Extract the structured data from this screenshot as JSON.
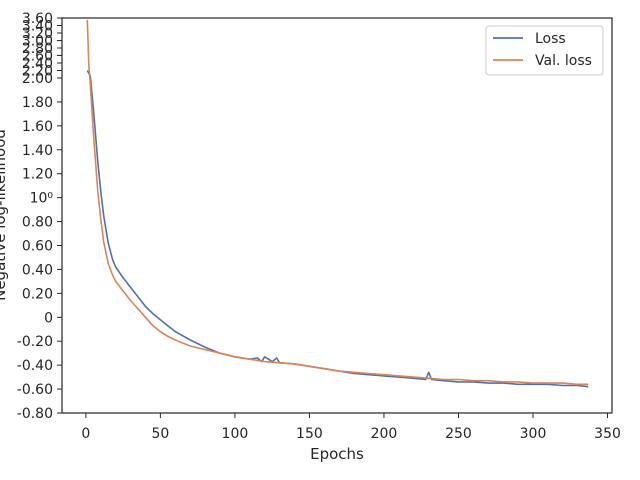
{
  "chart_data": {
    "type": "line",
    "xlabel": "Epochs",
    "ylabel": "Negative log-likelihood",
    "xlim": [
      -16,
      353
    ],
    "ylim": [
      -0.8,
      3.6
    ],
    "y_scale": "symlog-like (compressed above 2.00)",
    "grid": false,
    "legend_position": "top-right",
    "x_ticks": [
      {
        "value": 0,
        "label": "0"
      },
      {
        "value": 50,
        "label": "50"
      },
      {
        "value": 100,
        "label": "100"
      },
      {
        "value": 150,
        "label": "150"
      },
      {
        "value": 200,
        "label": "200"
      },
      {
        "value": 250,
        "label": "250"
      },
      {
        "value": 300,
        "label": "300"
      },
      {
        "value": 350,
        "label": "350"
      }
    ],
    "y_ticks": [
      {
        "value": -0.8,
        "label": "-0.80"
      },
      {
        "value": -0.6,
        "label": "-0.60"
      },
      {
        "value": -0.4,
        "label": "-0.40"
      },
      {
        "value": -0.2,
        "label": "-0.20"
      },
      {
        "value": 0.0,
        "label": "0"
      },
      {
        "value": 0.2,
        "label": "0.20"
      },
      {
        "value": 0.4,
        "label": "0.40"
      },
      {
        "value": 0.6,
        "label": "0.60"
      },
      {
        "value": 0.8,
        "label": "0.80"
      },
      {
        "value": 1.0,
        "label": "10⁰"
      },
      {
        "value": 1.2,
        "label": "1.20"
      },
      {
        "value": 1.4,
        "label": "1.40"
      },
      {
        "value": 1.6,
        "label": "1.60"
      },
      {
        "value": 1.8,
        "label": "1.80"
      },
      {
        "value": 2.0,
        "label": "2.00"
      },
      {
        "value": 2.2,
        "label": "2.20"
      },
      {
        "value": 2.4,
        "label": "2.40"
      },
      {
        "value": 2.6,
        "label": "2.60"
      },
      {
        "value": 2.8,
        "label": "2.80"
      },
      {
        "value": 3.0,
        "label": "3.00"
      },
      {
        "value": 3.2,
        "label": "3.20"
      },
      {
        "value": 3.4,
        "label": "3.40"
      },
      {
        "value": 3.6,
        "label": "3.60"
      }
    ],
    "series": [
      {
        "name": "Loss",
        "color": "#4c72b0",
        "x": [
          1,
          3,
          5,
          8,
          10,
          12,
          15,
          18,
          20,
          25,
          30,
          35,
          40,
          45,
          50,
          55,
          60,
          70,
          80,
          90,
          100,
          110,
          115,
          118,
          120,
          125,
          128,
          130,
          140,
          150,
          160,
          170,
          180,
          190,
          200,
          210,
          220,
          228,
          230,
          232,
          240,
          250,
          260,
          270,
          280,
          290,
          300,
          310,
          320,
          330,
          337
        ],
        "y": [
          2.2,
          2.05,
          1.75,
          1.3,
          1.05,
          0.85,
          0.62,
          0.48,
          0.42,
          0.33,
          0.25,
          0.17,
          0.09,
          0.03,
          -0.02,
          -0.07,
          -0.12,
          -0.19,
          -0.25,
          -0.3,
          -0.33,
          -0.35,
          -0.34,
          -0.37,
          -0.33,
          -0.37,
          -0.34,
          -0.38,
          -0.39,
          -0.41,
          -0.43,
          -0.45,
          -0.47,
          -0.48,
          -0.49,
          -0.5,
          -0.51,
          -0.52,
          -0.46,
          -0.52,
          -0.53,
          -0.54,
          -0.54,
          -0.55,
          -0.55,
          -0.56,
          -0.56,
          -0.56,
          -0.57,
          -0.57,
          -0.58
        ]
      },
      {
        "name": "Val. loss",
        "color": "#dd8452",
        "x": [
          1,
          2,
          3,
          5,
          8,
          10,
          12,
          15,
          18,
          20,
          25,
          30,
          35,
          40,
          45,
          50,
          55,
          60,
          70,
          80,
          90,
          100,
          110,
          120,
          130,
          140,
          150,
          160,
          170,
          180,
          190,
          200,
          210,
          220,
          230,
          240,
          250,
          260,
          270,
          280,
          290,
          300,
          310,
          320,
          330,
          337
        ],
        "y": [
          3.55,
          2.35,
          1.95,
          1.55,
          1.05,
          0.82,
          0.63,
          0.45,
          0.35,
          0.3,
          0.22,
          0.14,
          0.07,
          0.0,
          -0.07,
          -0.12,
          -0.16,
          -0.19,
          -0.24,
          -0.27,
          -0.3,
          -0.33,
          -0.35,
          -0.37,
          -0.38,
          -0.39,
          -0.41,
          -0.43,
          -0.45,
          -0.46,
          -0.47,
          -0.48,
          -0.49,
          -0.5,
          -0.51,
          -0.52,
          -0.52,
          -0.53,
          -0.53,
          -0.54,
          -0.54,
          -0.55,
          -0.55,
          -0.55,
          -0.56,
          -0.56
        ]
      }
    ]
  }
}
